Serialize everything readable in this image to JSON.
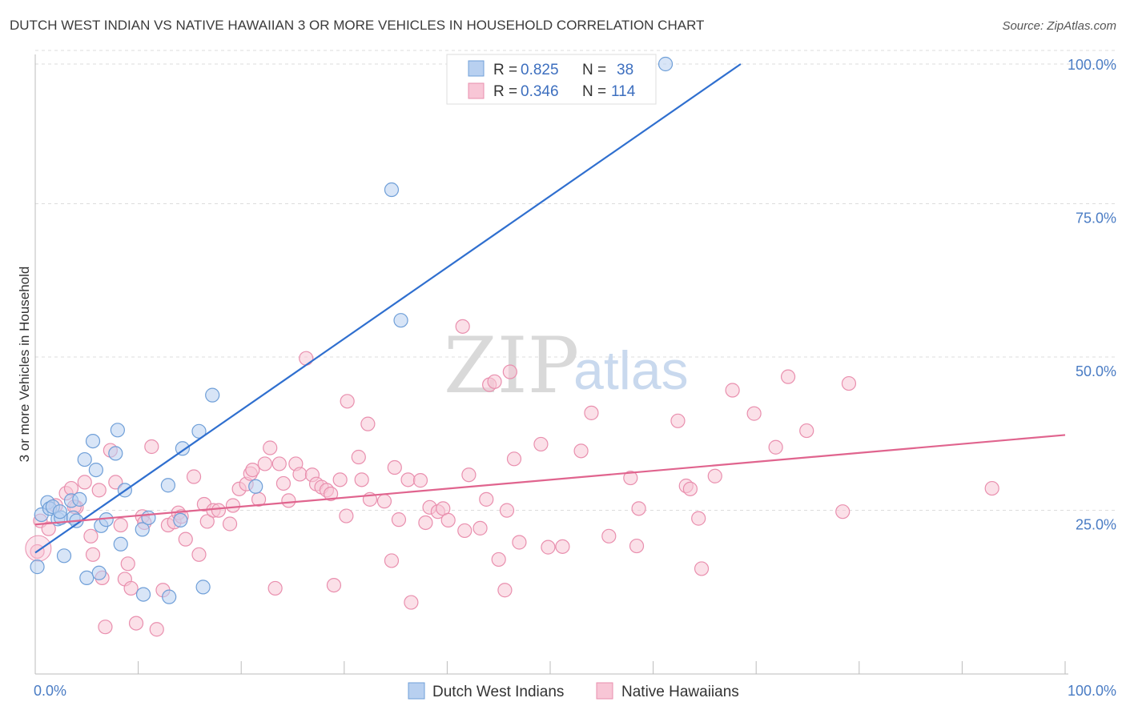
{
  "title": "DUTCH WEST INDIAN VS NATIVE HAWAIIAN 3 OR MORE VEHICLES IN HOUSEHOLD CORRELATION CHART",
  "source": "Source: ZipAtlas.com",
  "watermark": {
    "zip": "ZIP",
    "atlas": "atlas"
  },
  "colors": {
    "blue_fill": "#b8d0f0",
    "blue_stroke": "#6f9fd8",
    "blue_line": "#2f6fcf",
    "pink_fill": "#f8c6d6",
    "pink_stroke": "#e98fae",
    "pink_line": "#e0648e",
    "grid": "#dddddd",
    "tick_text": "#4a7cc4"
  },
  "legend": {
    "rows": [
      {
        "r_label": "R = ",
        "r_value": "0.825",
        "n_label": "N = ",
        "n_value": "38"
      },
      {
        "r_label": "R = ",
        "r_value": "0.346",
        "n_label": "N = ",
        "n_value": "114"
      }
    ]
  },
  "chart_data": {
    "type": "scatter",
    "title": "DUTCH WEST INDIAN VS NATIVE HAWAIIAN 3 OR MORE VEHICLES IN HOUSEHOLD CORRELATION CHART",
    "xlabel": "",
    "ylabel": "3 or more Vehicles in Household",
    "xlim": [
      0,
      100
    ],
    "ylim": [
      0,
      100
    ],
    "x_tick_labels": [
      "0.0%",
      "100.0%"
    ],
    "y_ticks": [
      25,
      50,
      75,
      100
    ],
    "y_tick_labels": [
      "25.0%",
      "50.0%",
      "75.0%",
      "100.0%"
    ],
    "grid": true,
    "legend_position": "bottom",
    "series": [
      {
        "name": "Dutch West Indians",
        "color": "#6f9fd8",
        "r": 0.825,
        "n": 38,
        "trend": {
          "x": [
            0,
            68.5
          ],
          "y": [
            20.3,
            100
          ]
        },
        "points": [
          [
            0.2,
            18.0
          ],
          [
            0.6,
            26.5
          ],
          [
            1.2,
            28.5
          ],
          [
            1.4,
            27.5
          ],
          [
            1.7,
            27.8
          ],
          [
            2.2,
            25.8
          ],
          [
            2.5,
            26.0
          ],
          [
            2.8,
            19.8
          ],
          [
            3.5,
            28.8
          ],
          [
            3.7,
            26.0
          ],
          [
            4.0,
            25.5
          ],
          [
            4.3,
            29.0
          ],
          [
            4.8,
            35.5
          ],
          [
            5.0,
            16.2
          ],
          [
            5.6,
            38.5
          ],
          [
            5.9,
            33.8
          ],
          [
            6.2,
            17.0
          ],
          [
            6.4,
            24.7
          ],
          [
            6.9,
            25.7
          ],
          [
            7.8,
            36.5
          ],
          [
            8.0,
            40.3
          ],
          [
            8.3,
            21.7
          ],
          [
            8.7,
            30.5
          ],
          [
            10.4,
            24.1
          ],
          [
            10.5,
            13.5
          ],
          [
            11.0,
            26.0
          ],
          [
            12.9,
            31.3
          ],
          [
            13.0,
            13.1
          ],
          [
            14.1,
            25.6
          ],
          [
            14.3,
            37.3
          ],
          [
            15.9,
            40.1
          ],
          [
            16.3,
            14.7
          ],
          [
            17.2,
            46.0
          ],
          [
            21.4,
            31.1
          ],
          [
            34.6,
            79.5
          ],
          [
            35.5,
            58.2
          ],
          [
            61.2,
            100.0
          ],
          [
            2.4,
            27.0
          ]
        ]
      },
      {
        "name": "Native Hawaiians",
        "color": "#e98fae",
        "r": 0.346,
        "n": 114,
        "trend": {
          "x": [
            0,
            100
          ],
          "y": [
            24.9,
            39.5
          ]
        },
        "points": [
          [
            0.2,
            20.5
          ],
          [
            0.5,
            25.5
          ],
          [
            1.3,
            24.2
          ],
          [
            2.0,
            28.0
          ],
          [
            3.0,
            30.0
          ],
          [
            3.5,
            30.8
          ],
          [
            4.0,
            27.7
          ],
          [
            4.8,
            31.8
          ],
          [
            5.4,
            23.0
          ],
          [
            5.6,
            20.0
          ],
          [
            6.2,
            30.5
          ],
          [
            6.5,
            16.2
          ],
          [
            6.8,
            8.2
          ],
          [
            7.3,
            37.0
          ],
          [
            7.8,
            31.8
          ],
          [
            8.3,
            24.8
          ],
          [
            8.7,
            16.0
          ],
          [
            9.0,
            18.5
          ],
          [
            9.3,
            14.5
          ],
          [
            9.8,
            8.8
          ],
          [
            10.4,
            26.2
          ],
          [
            10.6,
            25.2
          ],
          [
            11.3,
            37.6
          ],
          [
            11.8,
            7.8
          ],
          [
            12.4,
            14.2
          ],
          [
            12.9,
            24.8
          ],
          [
            13.5,
            25.3
          ],
          [
            13.9,
            26.8
          ],
          [
            14.2,
            26.2
          ],
          [
            14.6,
            22.5
          ],
          [
            15.4,
            32.7
          ],
          [
            15.9,
            20.0
          ],
          [
            16.4,
            28.2
          ],
          [
            16.7,
            25.4
          ],
          [
            17.3,
            27.2
          ],
          [
            17.8,
            27.2
          ],
          [
            18.9,
            25.0
          ],
          [
            19.2,
            28.0
          ],
          [
            19.8,
            30.7
          ],
          [
            20.5,
            31.5
          ],
          [
            20.9,
            33.2
          ],
          [
            21.1,
            33.8
          ],
          [
            21.7,
            29.0
          ],
          [
            22.3,
            34.8
          ],
          [
            22.8,
            37.4
          ],
          [
            23.3,
            14.5
          ],
          [
            23.7,
            34.8
          ],
          [
            24.1,
            31.6
          ],
          [
            24.6,
            28.8
          ],
          [
            25.3,
            34.8
          ],
          [
            25.7,
            33.1
          ],
          [
            26.3,
            52.0
          ],
          [
            26.9,
            33.0
          ],
          [
            27.3,
            31.5
          ],
          [
            27.8,
            31.0
          ],
          [
            28.3,
            30.5
          ],
          [
            28.7,
            29.9
          ],
          [
            29.0,
            15.0
          ],
          [
            29.6,
            32.2
          ],
          [
            30.2,
            26.3
          ],
          [
            30.3,
            45.0
          ],
          [
            31.4,
            35.9
          ],
          [
            31.7,
            32.2
          ],
          [
            32.3,
            41.3
          ],
          [
            32.5,
            29.0
          ],
          [
            33.9,
            28.7
          ],
          [
            34.6,
            19.0
          ],
          [
            34.9,
            34.2
          ],
          [
            35.3,
            25.7
          ],
          [
            36.2,
            32.2
          ],
          [
            36.5,
            12.2
          ],
          [
            37.4,
            32.1
          ],
          [
            37.9,
            25.2
          ],
          [
            38.3,
            27.7
          ],
          [
            39.1,
            27.0
          ],
          [
            39.6,
            27.5
          ],
          [
            40.1,
            25.6
          ],
          [
            41.5,
            57.2
          ],
          [
            41.7,
            23.9
          ],
          [
            42.1,
            33.0
          ],
          [
            43.2,
            24.3
          ],
          [
            43.8,
            29.0
          ],
          [
            44.1,
            47.7
          ],
          [
            44.6,
            48.2
          ],
          [
            45.0,
            19.2
          ],
          [
            45.6,
            14.2
          ],
          [
            45.8,
            27.2
          ],
          [
            46.1,
            49.8
          ],
          [
            46.5,
            35.6
          ],
          [
            47.0,
            22.0
          ],
          [
            49.1,
            38.0
          ],
          [
            49.8,
            21.2
          ],
          [
            51.2,
            21.3
          ],
          [
            53.0,
            36.9
          ],
          [
            54.0,
            43.1
          ],
          [
            55.7,
            23.0
          ],
          [
            57.8,
            32.5
          ],
          [
            58.4,
            21.4
          ],
          [
            58.6,
            27.5
          ],
          [
            62.4,
            41.8
          ],
          [
            63.2,
            31.2
          ],
          [
            63.6,
            30.7
          ],
          [
            64.4,
            25.9
          ],
          [
            64.7,
            17.7
          ],
          [
            66.0,
            32.8
          ],
          [
            67.7,
            46.8
          ],
          [
            69.8,
            43.0
          ],
          [
            71.9,
            37.5
          ],
          [
            73.1,
            49.0
          ],
          [
            74.9,
            40.2
          ],
          [
            78.4,
            27.0
          ],
          [
            79.0,
            47.9
          ],
          [
            92.9,
            30.8
          ],
          [
            3.8,
            27.8
          ]
        ]
      }
    ]
  },
  "bottom_legend": [
    "Dutch West Indians",
    "Native Hawaiians"
  ]
}
